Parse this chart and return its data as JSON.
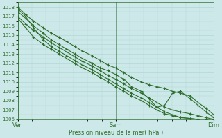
{
  "xlabel": "Pression niveau de la mer( hPa )",
  "ylim": [
    1006,
    1018.5
  ],
  "yticks": [
    1006,
    1007,
    1008,
    1009,
    1010,
    1011,
    1012,
    1013,
    1014,
    1015,
    1016,
    1017,
    1018
  ],
  "xtick_labels": [
    "Ven",
    "Sam",
    "Dim"
  ],
  "xtick_positions": [
    0.0,
    0.5,
    1.0
  ],
  "bg_color": "#cce8e8",
  "grid_color": "#b0d8d8",
  "line_color": "#2d6e2d",
  "series": [
    {
      "x": [
        0.0,
        0.04,
        0.08,
        0.13,
        0.17,
        0.21,
        0.25,
        0.29,
        0.33,
        0.38,
        0.42,
        0.46,
        0.5,
        0.54,
        0.58,
        0.63,
        0.67,
        0.71,
        0.75,
        0.79,
        0.83,
        0.88,
        0.92,
        0.96,
        1.0
      ],
      "y": [
        1018.0,
        1017.2,
        1016.5,
        1015.8,
        1015.2,
        1014.8,
        1014.3,
        1013.8,
        1013.3,
        1012.8,
        1012.3,
        1011.8,
        1011.5,
        1011.0,
        1010.5,
        1010.0,
        1009.7,
        1009.5,
        1009.3,
        1009.0,
        1008.8,
        1008.5,
        1007.8,
        1007.2,
        1006.5
      ]
    },
    {
      "x": [
        0.0,
        0.04,
        0.08,
        0.13,
        0.17,
        0.21,
        0.25,
        0.29,
        0.33,
        0.38,
        0.42,
        0.46,
        0.5,
        0.54,
        0.58,
        0.63,
        0.67,
        0.71,
        0.75,
        0.79,
        0.83,
        0.88,
        0.92,
        0.96,
        1.0
      ],
      "y": [
        1017.5,
        1016.8,
        1016.0,
        1015.2,
        1014.5,
        1014.0,
        1013.5,
        1013.0,
        1012.5,
        1012.0,
        1011.5,
        1011.2,
        1010.8,
        1010.3,
        1009.5,
        1009.0,
        1008.2,
        1007.3,
        1007.5,
        1008.8,
        1009.0,
        1008.2,
        1007.5,
        1006.8,
        1006.2
      ]
    },
    {
      "x": [
        0.0,
        0.04,
        0.08,
        0.13,
        0.17,
        0.21,
        0.25,
        0.29,
        0.33,
        0.38,
        0.42,
        0.46,
        0.5,
        0.54,
        0.58,
        0.63,
        0.67,
        0.71,
        0.75,
        0.79,
        0.83,
        0.88,
        0.92,
        0.96,
        1.0
      ],
      "y": [
        1017.0,
        1016.2,
        1015.5,
        1014.8,
        1014.2,
        1013.7,
        1013.2,
        1012.7,
        1012.2,
        1011.7,
        1011.2,
        1010.7,
        1010.3,
        1009.8,
        1009.3,
        1008.8,
        1008.3,
        1007.8,
        1007.3,
        1007.0,
        1006.8,
        1006.6,
        1006.4,
        1006.2,
        1006.0
      ]
    },
    {
      "x": [
        0.0,
        0.04,
        0.08,
        0.13,
        0.17,
        0.21,
        0.25,
        0.29,
        0.33,
        0.38,
        0.42,
        0.46,
        0.5,
        0.54,
        0.58,
        0.63,
        0.67,
        0.71,
        0.75,
        0.79,
        0.83,
        0.88,
        0.92,
        0.96,
        1.0
      ],
      "y": [
        1017.8,
        1017.0,
        1015.8,
        1014.5,
        1013.8,
        1013.3,
        1012.8,
        1012.3,
        1011.8,
        1011.3,
        1010.8,
        1010.3,
        1009.8,
        1009.3,
        1008.8,
        1008.3,
        1007.8,
        1007.3,
        1006.8,
        1006.5,
        1006.2,
        1006.1,
        1006.0,
        1006.0,
        1006.0
      ]
    },
    {
      "x": [
        0.0,
        0.04,
        0.08,
        0.13,
        0.17,
        0.21,
        0.25,
        0.29,
        0.33,
        0.38,
        0.42,
        0.46,
        0.5,
        0.54,
        0.58,
        0.63,
        0.67,
        0.71,
        0.75,
        0.79,
        0.83,
        0.88,
        0.92,
        0.96,
        1.0
      ],
      "y": [
        1016.8,
        1015.8,
        1014.8,
        1014.0,
        1013.5,
        1013.0,
        1012.5,
        1012.0,
        1011.5,
        1011.0,
        1010.5,
        1010.0,
        1009.5,
        1009.0,
        1008.5,
        1008.0,
        1007.5,
        1007.0,
        1006.6,
        1006.4,
        1006.2,
        1006.1,
        1006.0,
        1006.0,
        1006.0
      ]
    }
  ],
  "marker": "+",
  "markersize": 3,
  "linewidth": 0.8
}
